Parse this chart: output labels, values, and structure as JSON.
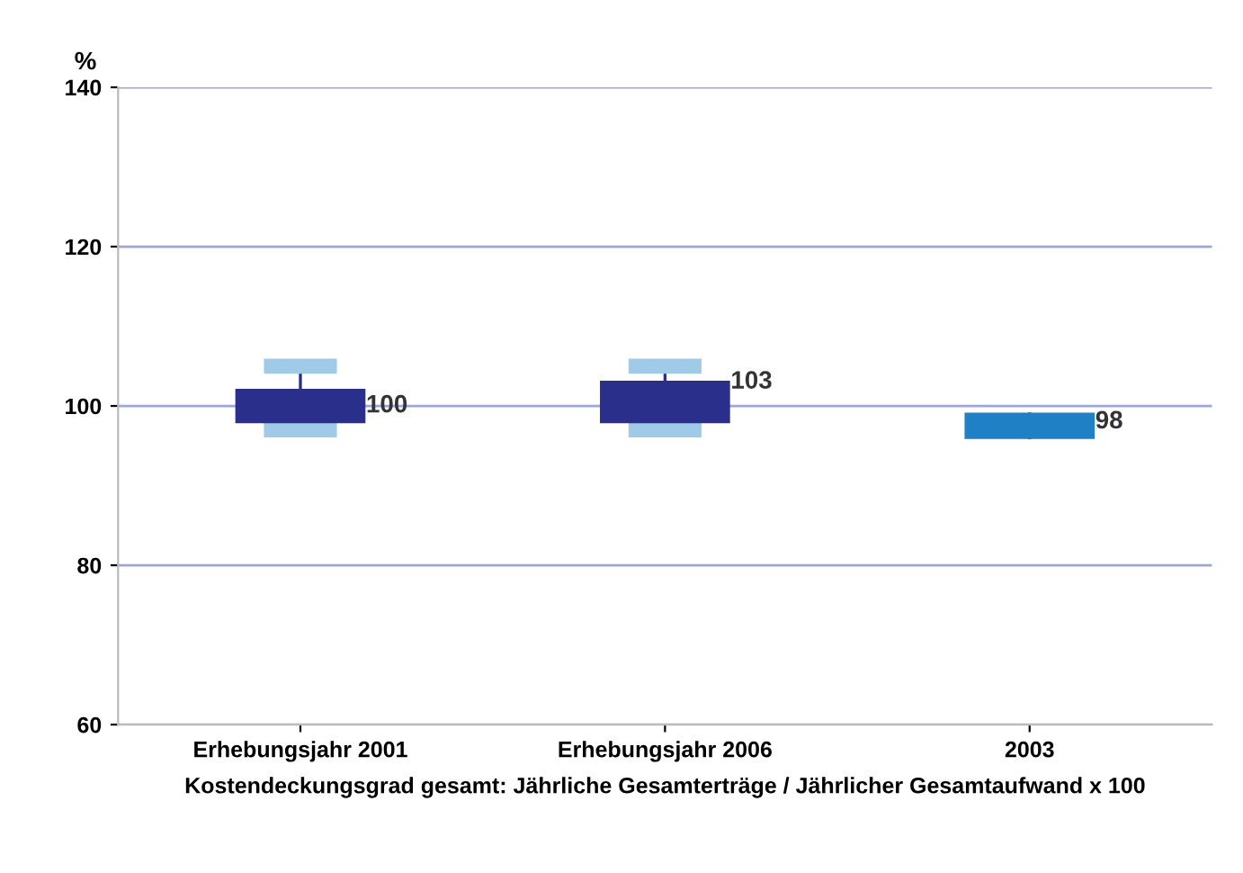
{
  "chart_data": {
    "type": "box",
    "xlabel": "Kostendeckungsgrad gesamt: Jährliche Gesamterträge / Jährlicher Gesamtaufwand x 100",
    "ylabel": "%",
    "categories": [
      "Erhebungsjahr 2001",
      "Erhebungsjahr 2006",
      "2003"
    ],
    "boxes": [
      {
        "low": 97,
        "q1": 98,
        "median": 100,
        "q3": 102,
        "high": 105
      },
      {
        "low": 97,
        "q1": 98,
        "median": 103,
        "q3": 103,
        "high": 105
      },
      {
        "low": 96,
        "q1": 96,
        "median": 98,
        "q3": 99,
        "high": 99
      }
    ],
    "colors": [
      "#2b2f8c",
      "#2b2f8c",
      "#1f80c6"
    ],
    "ylim": [
      60,
      140
    ],
    "yticks": [
      60,
      80,
      100,
      120,
      140
    ],
    "grid": "y",
    "value_labels": [
      "100",
      "103",
      "98"
    ]
  }
}
